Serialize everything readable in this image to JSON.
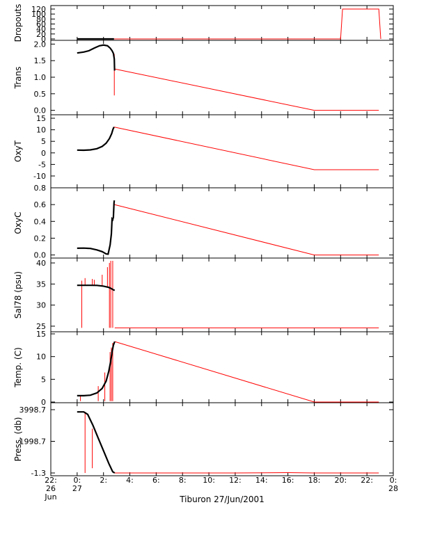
{
  "chart_data": {
    "type": "line",
    "xlabel": "Tiburon 27/Jun/2001",
    "x_ticks": [
      {
        "hour": -2,
        "line1": "22:",
        "line2": "26",
        "line3": "Jun"
      },
      {
        "hour": 0,
        "line1": "0:",
        "line2": "27",
        "line3": ""
      },
      {
        "hour": 2,
        "line1": "2:",
        "line2": "",
        "line3": ""
      },
      {
        "hour": 4,
        "line1": "4:",
        "line2": "",
        "line3": ""
      },
      {
        "hour": 6,
        "line1": "6:",
        "line2": "",
        "line3": ""
      },
      {
        "hour": 8,
        "line1": "8:",
        "line2": "",
        "line3": ""
      },
      {
        "hour": 10,
        "line1": "10:",
        "line2": "",
        "line3": ""
      },
      {
        "hour": 12,
        "line1": "12:",
        "line2": "",
        "line3": ""
      },
      {
        "hour": 14,
        "line1": "14:",
        "line2": "",
        "line3": ""
      },
      {
        "hour": 16,
        "line1": "16:",
        "line2": "",
        "line3": ""
      },
      {
        "hour": 18,
        "line1": "18:",
        "line2": "",
        "line3": ""
      },
      {
        "hour": 20,
        "line1": "20:",
        "line2": "",
        "line3": ""
      },
      {
        "hour": 22,
        "line1": "22:",
        "line2": "",
        "line3": ""
      },
      {
        "hour": 24,
        "line1": "0:",
        "line2": "28",
        "line3": ""
      }
    ],
    "xlim": [
      -2,
      24
    ],
    "colors": {
      "measured": "#000000",
      "interpolated": "#ff0000"
    },
    "panels": [
      {
        "id": "dropouts",
        "ylabel": "Dropouts",
        "ylim": [
          0,
          120
        ],
        "ticks": [
          {
            "v": 0,
            "label": "0"
          },
          {
            "v": 20,
            "label": "20"
          },
          {
            "v": 40,
            "label": "40"
          },
          {
            "v": 60,
            "label": "60"
          },
          {
            "v": 80,
            "label": "80"
          },
          {
            "v": 100,
            "label": "100"
          },
          {
            "v": 120,
            "label": "120"
          }
        ],
        "black": [
          [
            0,
            0
          ],
          [
            2.8,
            0
          ]
        ],
        "red": [
          [
            2.8,
            0
          ],
          [
            20.0,
            0
          ],
          [
            20.15,
            120
          ],
          [
            22.9,
            120
          ],
          [
            23.05,
            0
          ]
        ]
      },
      {
        "id": "trans",
        "ylabel": "Trans",
        "ylim": [
          -0.05,
          2.05
        ],
        "ticks": [
          {
            "v": 0,
            "label": "0.0"
          },
          {
            "v": 0.5,
            "label": "0.5"
          },
          {
            "v": 1.0,
            "label": "1.0"
          },
          {
            "v": 1.5,
            "label": "1.5"
          },
          {
            "v": 2.0,
            "label": "2.0"
          }
        ],
        "black": [
          [
            0,
            1.73
          ],
          [
            0.5,
            1.76
          ],
          [
            0.9,
            1.8
          ],
          [
            1.3,
            1.88
          ],
          [
            1.7,
            1.95
          ],
          [
            2.0,
            1.97
          ],
          [
            2.3,
            1.95
          ],
          [
            2.5,
            1.88
          ],
          [
            2.65,
            1.8
          ],
          [
            2.75,
            1.72
          ],
          [
            2.82,
            1.55
          ],
          [
            2.84,
            1.2
          ]
        ],
        "red": [
          [
            2.84,
            1.25
          ],
          [
            18.0,
            0.0
          ],
          [
            22.9,
            0.0
          ]
        ],
        "spikes": [
          [
            2.82,
            0.45,
            1.7
          ]
        ]
      },
      {
        "id": "oxyt",
        "ylabel": "OxyT",
        "ylim": [
          -10,
          15
        ],
        "ticks": [
          {
            "v": -10,
            "label": "-10"
          },
          {
            "v": -5,
            "label": "-5"
          },
          {
            "v": 0,
            "label": "0"
          },
          {
            "v": 5,
            "label": "5"
          },
          {
            "v": 10,
            "label": "10"
          },
          {
            "v": 15,
            "label": "15"
          }
        ],
        "black": [
          [
            0,
            1.2
          ],
          [
            0.5,
            1.15
          ],
          [
            1.0,
            1.3
          ],
          [
            1.5,
            1.8
          ],
          [
            1.9,
            2.8
          ],
          [
            2.2,
            4.2
          ],
          [
            2.45,
            6.2
          ],
          [
            2.62,
            8.3
          ],
          [
            2.72,
            10.2
          ],
          [
            2.8,
            11.2
          ]
        ],
        "red": [
          [
            2.8,
            11.2
          ],
          [
            18.0,
            -7.3
          ],
          [
            22.9,
            -7.3
          ]
        ],
        "spikes": []
      },
      {
        "id": "oxyc",
        "ylabel": "OxyC",
        "ylim": [
          -0.02,
          0.8
        ],
        "ticks": [
          {
            "v": 0.0,
            "label": "0.0"
          },
          {
            "v": 0.2,
            "label": "0.2"
          },
          {
            "v": 0.4,
            "label": "0.4"
          },
          {
            "v": 0.6,
            "label": "0.6"
          },
          {
            "v": 0.8,
            "label": "0.8"
          }
        ],
        "black": [
          [
            0,
            0.08
          ],
          [
            0.5,
            0.082
          ],
          [
            1.0,
            0.078
          ],
          [
            1.5,
            0.06
          ],
          [
            1.9,
            0.04
          ],
          [
            2.2,
            0.012
          ],
          [
            2.35,
            0.01
          ],
          [
            2.5,
            0.12
          ],
          [
            2.6,
            0.25
          ],
          [
            2.65,
            0.43
          ],
          [
            2.7,
            0.42
          ],
          [
            2.75,
            0.45
          ],
          [
            2.8,
            0.62
          ],
          [
            2.82,
            0.65
          ]
        ],
        "red": [
          [
            2.82,
            0.6
          ],
          [
            18.0,
            0.0
          ],
          [
            22.9,
            0.0
          ]
        ],
        "spikes": []
      },
      {
        "id": "sal78",
        "ylabel": "Sal78 (psu)",
        "ylim": [
          24,
          40.5
        ],
        "ticks": [
          {
            "v": 25,
            "label": "25"
          },
          {
            "v": 30,
            "label": "30"
          },
          {
            "v": 35,
            "label": "35"
          },
          {
            "v": 40,
            "label": "40"
          }
        ],
        "black": [
          [
            0,
            34.7
          ],
          [
            0.5,
            34.7
          ],
          [
            1.0,
            34.7
          ],
          [
            1.5,
            34.68
          ],
          [
            2.0,
            34.5
          ],
          [
            2.4,
            34.2
          ],
          [
            2.6,
            33.9
          ],
          [
            2.75,
            33.6
          ],
          [
            2.85,
            33.5
          ]
        ],
        "red": [
          [
            2.85,
            24.6
          ],
          [
            22.9,
            24.6
          ]
        ],
        "spikes": [
          [
            0.35,
            24.6,
            35.8
          ],
          [
            0.6,
            34.7,
            36.4
          ],
          [
            1.15,
            34.7,
            36.2
          ],
          [
            1.3,
            34.7,
            36.0
          ],
          [
            1.9,
            34.5,
            37.2
          ],
          [
            2.3,
            34.2,
            39.0
          ],
          [
            2.45,
            24.6,
            40.0
          ],
          [
            2.55,
            24.6,
            40.5
          ],
          [
            2.7,
            24.6,
            40.5
          ]
        ]
      },
      {
        "id": "temp",
        "ylabel": "Temp. (C)",
        "ylim": [
          0,
          15
        ],
        "ticks": [
          {
            "v": 0,
            "label": "0"
          },
          {
            "v": 5,
            "label": "5"
          },
          {
            "v": 10,
            "label": "10"
          },
          {
            "v": 15,
            "label": "15"
          }
        ],
        "black": [
          [
            0,
            1.4
          ],
          [
            0.5,
            1.4
          ],
          [
            1.0,
            1.5
          ],
          [
            1.5,
            2.0
          ],
          [
            1.9,
            3.0
          ],
          [
            2.2,
            4.6
          ],
          [
            2.4,
            6.8
          ],
          [
            2.55,
            9.0
          ],
          [
            2.65,
            11.0
          ],
          [
            2.75,
            12.5
          ],
          [
            2.85,
            13.3
          ]
        ],
        "red": [
          [
            2.85,
            13.3
          ],
          [
            18.0,
            0.0
          ],
          [
            22.9,
            0.0
          ]
        ],
        "spikes": [
          [
            0.25,
            0.2,
            1.4
          ],
          [
            1.6,
            0.2,
            3.5
          ],
          [
            2.1,
            0.2,
            6.5
          ],
          [
            2.5,
            0.2,
            11.0
          ],
          [
            2.6,
            0.2,
            12.0
          ],
          [
            2.7,
            0.2,
            13.0
          ]
        ]
      },
      {
        "id": "press",
        "ylabel": "Press. (db)",
        "ylim": [
          -1.3,
          3998.7
        ],
        "ticks": [
          {
            "v": -1.3,
            "label": "-1.3"
          },
          {
            "v": 1998.7,
            "label": "1998.7"
          },
          {
            "v": 3998.7,
            "label": "3998.7"
          }
        ],
        "black": [
          [
            0,
            3860
          ],
          [
            0.5,
            3860
          ],
          [
            0.8,
            3700
          ],
          [
            1.2,
            3000
          ],
          [
            1.6,
            2200
          ],
          [
            2.0,
            1400
          ],
          [
            2.4,
            600
          ],
          [
            2.7,
            80
          ],
          [
            2.85,
            0
          ]
        ],
        "red": [
          [
            2.85,
            -1.3
          ],
          [
            12.0,
            -1.3
          ],
          [
            16.0,
            20
          ],
          [
            18.0,
            -1.3
          ],
          [
            22.9,
            -1.3
          ]
        ],
        "spikes": [
          [
            0.6,
            -1.3,
            3860
          ],
          [
            1.15,
            300,
            2800
          ]
        ]
      }
    ]
  }
}
